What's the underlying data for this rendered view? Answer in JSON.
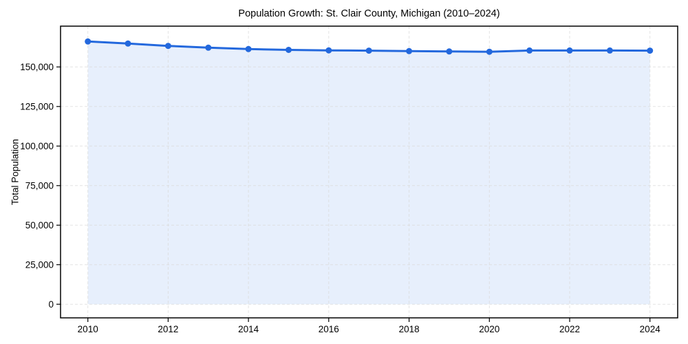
{
  "chart_data": {
    "type": "line",
    "title": "Population Growth: St. Clair County, Michigan (2010–2024)",
    "xlabel": "",
    "ylabel": "Total Population",
    "x": [
      2010,
      2011,
      2012,
      2013,
      2014,
      2015,
      2016,
      2017,
      2018,
      2019,
      2020,
      2021,
      2022,
      2023,
      2024
    ],
    "series": [
      {
        "name": "Total Population",
        "values": [
          166100,
          164800,
          163300,
          162200,
          161300,
          160800,
          160500,
          160300,
          160000,
          159800,
          159600,
          160400,
          160400,
          160400,
          160300
        ]
      }
    ],
    "x_ticks": [
      2010,
      2012,
      2014,
      2016,
      2018,
      2020,
      2022,
      2024
    ],
    "x_tick_labels": [
      "2010",
      "2012",
      "2014",
      "2016",
      "2018",
      "2020",
      "2022",
      "2024"
    ],
    "y_ticks": [
      0,
      25000,
      50000,
      75000,
      100000,
      125000,
      150000
    ],
    "y_tick_labels": [
      "0",
      "25,000",
      "50,000",
      "75,000",
      "100,000",
      "125,000",
      "150,000"
    ],
    "xlim": [
      2009.32,
      2024.69
    ],
    "ylim": [
      -8600,
      175800
    ],
    "grid": true,
    "legend_position": "none",
    "marker": "circle",
    "area_fill": true,
    "colors": {
      "line": "#2368dd",
      "marker": "#2368dd",
      "fill": "#e7effc",
      "grid": "#d9d9d9",
      "spine": "#000000",
      "text": "#000000",
      "background": "#ffffff"
    }
  }
}
